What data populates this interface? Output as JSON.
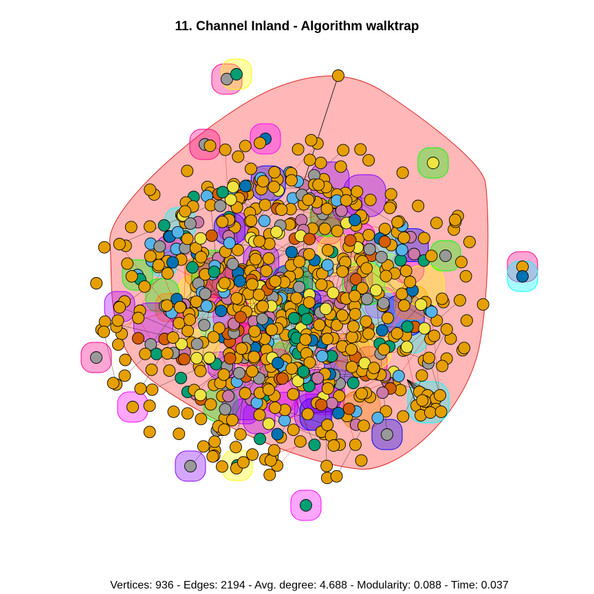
{
  "title": "11. Channel Inland - Algorithm walktrap",
  "stats": {
    "caption": "Vertices: 936 - Edges: 2194 - Avg. degree: 4.688 - Modularity: 0.088 - Time: 0.037",
    "vertices": 936,
    "edges": 2194,
    "avg_degree": 4.688,
    "modularity": 0.088,
    "time": 0.037
  },
  "graph": {
    "layout": "force-directed community plot",
    "node_colors": [
      "#E69F00",
      "#56B4E9",
      "#009E73",
      "#F0E442",
      "#0072B2",
      "#D55E00",
      "#CC79A7",
      "#999999"
    ],
    "dominant_node_color": "#E69F00",
    "main_community_fill": "#FFB3B3",
    "main_community_border": "#DD2222",
    "community_colors": [
      "#FF00FF",
      "#00FFFF",
      "#FFFF00",
      "#00FF00",
      "#0000FF",
      "#FF0088",
      "#8800FF",
      "#FF8800",
      "#AA00FF"
    ],
    "edge_color": "#000000",
    "inter_edge_color": "#FF0000"
  }
}
